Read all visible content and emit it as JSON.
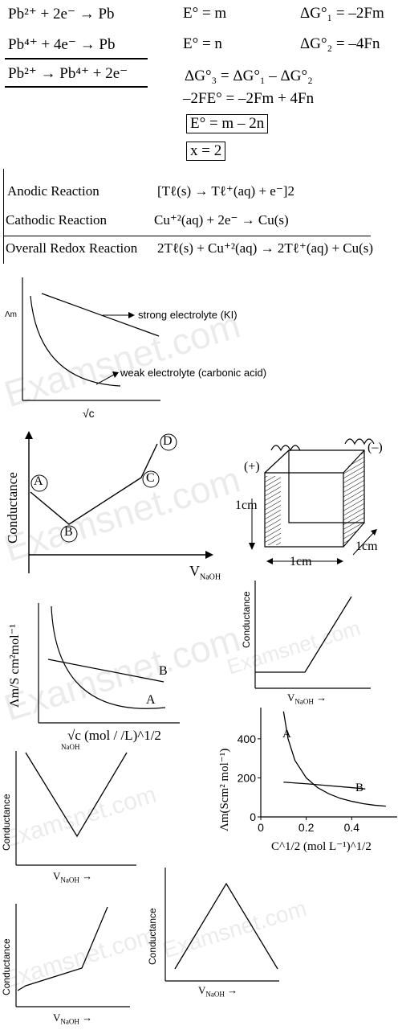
{
  "watermark": "Examsnet.com",
  "electrode_section": {
    "r1": {
      "reaction": "Pb²⁺ + 2e⁻ → Pb",
      "potential": "E° = m",
      "gibbs": "ΔG°₁ = –2Fm"
    },
    "r2": {
      "reaction": "Pb⁴⁺ + 4e⁻ → Pb",
      "potential": "E° = n",
      "gibbs": "ΔG°₂ = –4Fn"
    },
    "r3": {
      "reaction": "Pb²⁺ → Pb⁴⁺ + 2e⁻",
      "relation": "ΔG°₃ = ΔG°₁ – ΔG°₂"
    },
    "step1": "–2FE° = –2Fm + 4Fn",
    "result1": "E° = m – 2n",
    "result2": "x = 2"
  },
  "redox_table": {
    "rows": [
      {
        "label": "Anodic Reaction",
        "equation": "[Tℓ(s) → Tℓ⁺(aq) + e⁻]2"
      },
      {
        "label": "Cathodic Reaction",
        "equation": "Cu⁺²(aq) + 2e⁻ → Cu(s)"
      },
      {
        "label": "Overall Redox Reaction",
        "equation": "2Tℓ(s) + Cu⁺²(aq) → 2Tℓ⁺(aq) + Cu(s)"
      }
    ]
  },
  "graph1": {
    "ylabel": "Λm",
    "xlabel": "√c",
    "strong_label": "strong electrolyte (KI)",
    "weak_label": "weak electrolyte (carbonic acid)"
  },
  "graph2": {
    "ylabel": "Conductance",
    "xlabel": "V",
    "xlabel_sub": "NaOH",
    "points": [
      "A",
      "B",
      "C",
      "D"
    ]
  },
  "cube": {
    "plus": "(+)",
    "minus": "(–)",
    "height": "1cm",
    "width": "1cm",
    "depth": "1cm"
  },
  "graph3": {
    "ylabel": "Λm/S cm²mol⁻¹",
    "xlabel": "√c (mol / /L)^1/2",
    "curve_a": "A",
    "curve_b": "B",
    "stray": "NaOH"
  },
  "graph4": {
    "ylabel": "Conductance",
    "xlabel": "V",
    "xlabel_sub": "NaOH"
  },
  "graph5": {
    "ylabel": "Conductance",
    "xlabel": "V",
    "xlabel_sub": "NaOH"
  },
  "graph6": {
    "ylabel": "Λm(Scm² mol⁻¹)",
    "xlabel": "C^1/2 (mol L⁻¹)^1/2",
    "curve_a": "A",
    "curve_b": "B"
  },
  "chart_data": {
    "type": "line",
    "title": "",
    "xlabel": "C^1/2 (mol L⁻¹)^1/2",
    "ylabel": "Λm(Scm² mol⁻¹)",
    "x_ticks": [
      0,
      0.2,
      0.4
    ],
    "y_ticks": [
      0,
      200,
      400
    ],
    "xlim": [
      0,
      0.6
    ],
    "ylim": [
      0,
      560
    ],
    "series": [
      {
        "name": "A",
        "x": [
          0.1,
          0.12,
          0.15,
          0.2,
          0.25,
          0.3,
          0.35,
          0.4,
          0.45,
          0.5,
          0.55
        ],
        "y": [
          540,
          400,
          290,
          200,
          150,
          118,
          95,
          80,
          68,
          60,
          55
        ]
      },
      {
        "name": "B",
        "x": [
          0.1,
          0.2,
          0.3,
          0.4,
          0.46
        ],
        "y": [
          178,
          170,
          160,
          150,
          143
        ]
      }
    ]
  },
  "graph7": {
    "ylabel": "Conductance",
    "xlabel": "V",
    "xlabel_sub": "NaOH"
  },
  "graph8": {
    "ylabel": "Conductance",
    "xlabel": "V",
    "xlabel_sub": "NaOH"
  }
}
